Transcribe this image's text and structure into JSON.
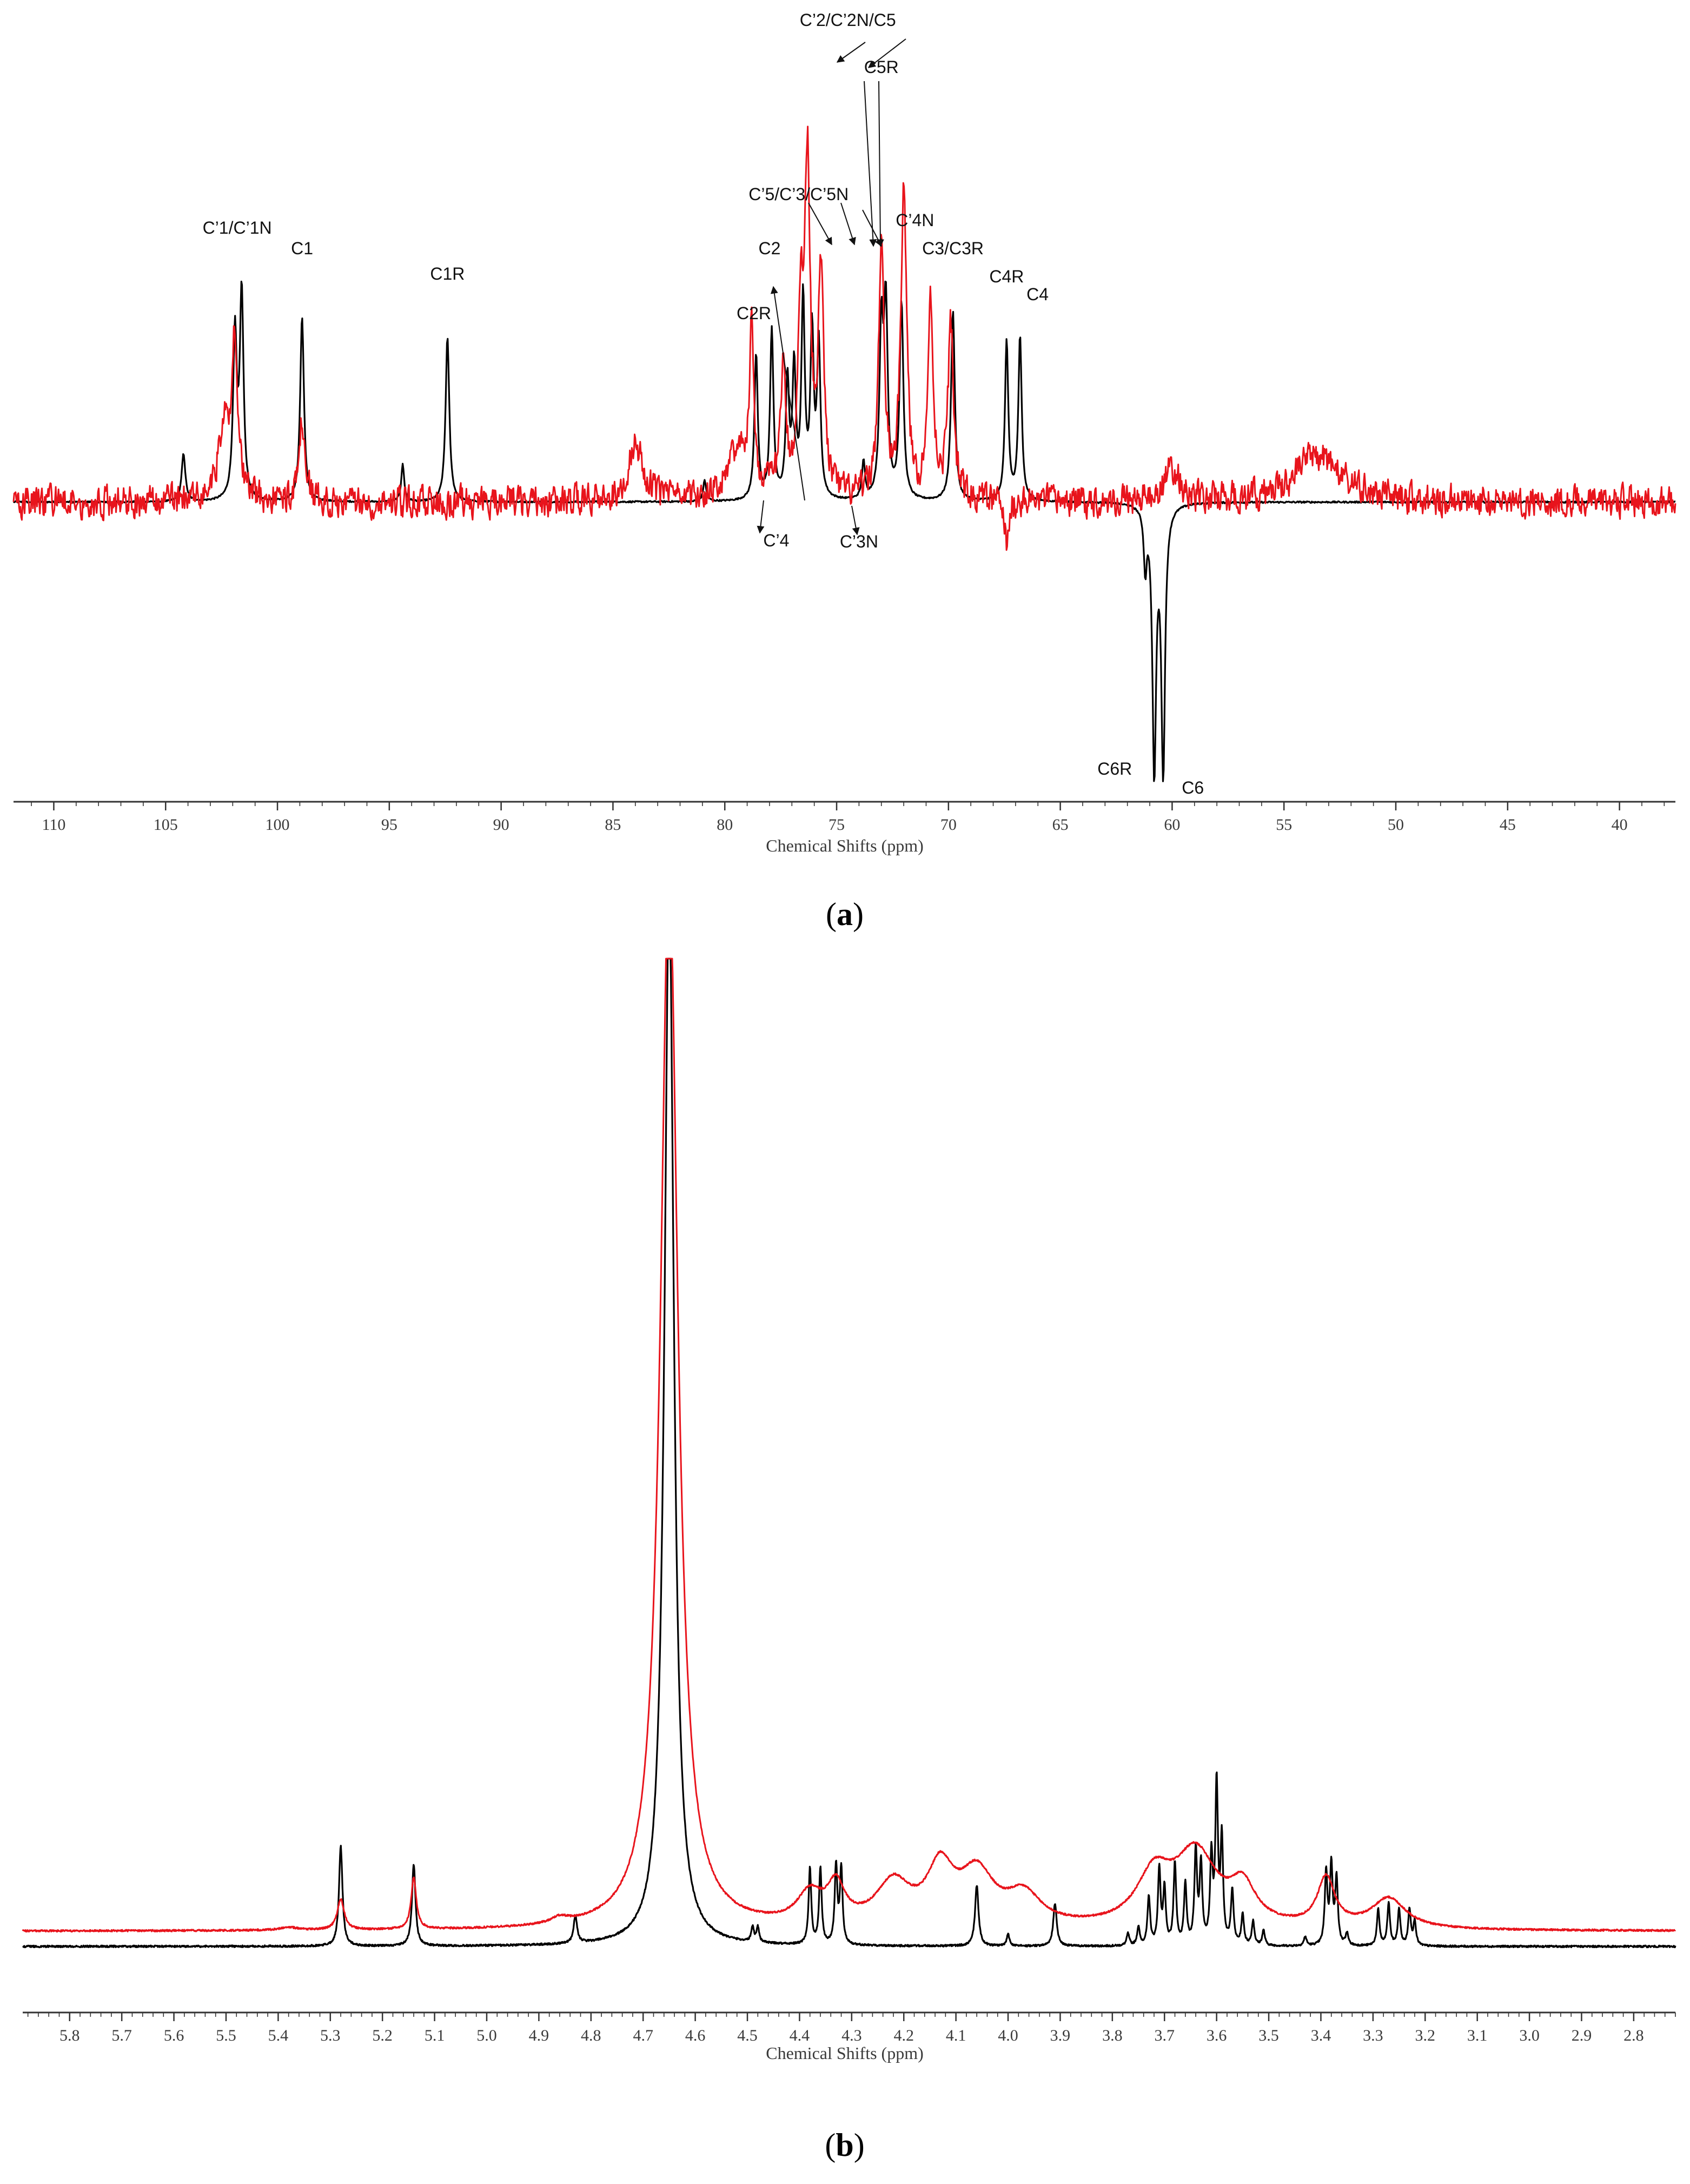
{
  "colors": {
    "black": "#000000",
    "red": "#e8141c",
    "axis": "#333333"
  },
  "chart_data": [
    {
      "type": "line",
      "panel": "a",
      "panel_label": "a",
      "xlabel": "Chemical Shifts (ppm)",
      "xlim": [
        111.8,
        37.5
      ],
      "x_reversed": true,
      "x_ticks": [
        110,
        105,
        100,
        95,
        90,
        85,
        80,
        75,
        70,
        65,
        60,
        55,
        50,
        45,
        40
      ],
      "series": [
        {
          "color": "black",
          "baseline": 0,
          "peaks": [
            {
              "x": 104.2,
              "h": 0.18,
              "w": 0.1
            },
            {
              "x": 101.9,
              "h": 0.62,
              "w": 0.1
            },
            {
              "x": 101.6,
              "h": 0.78,
              "w": 0.1
            },
            {
              "x": 98.9,
              "h": 0.7,
              "w": 0.1
            },
            {
              "x": 94.4,
              "h": 0.14,
              "w": 0.08
            },
            {
              "x": 92.4,
              "h": 0.62,
              "w": 0.1
            },
            {
              "x": 80.9,
              "h": 0.08,
              "w": 0.08
            },
            {
              "x": 78.6,
              "h": 0.55,
              "w": 0.09
            },
            {
              "x": 77.9,
              "h": 0.64,
              "w": 0.09
            },
            {
              "x": 77.2,
              "h": 0.44,
              "w": 0.09
            },
            {
              "x": 76.9,
              "h": 0.48,
              "w": 0.09
            },
            {
              "x": 76.5,
              "h": 0.75,
              "w": 0.09
            },
            {
              "x": 76.1,
              "h": 0.62,
              "w": 0.09
            },
            {
              "x": 75.8,
              "h": 0.58,
              "w": 0.09
            },
            {
              "x": 73.8,
              "h": 0.14,
              "w": 0.08
            },
            {
              "x": 73.0,
              "h": 0.62,
              "w": 0.1
            },
            {
              "x": 72.8,
              "h": 0.7,
              "w": 0.1
            },
            {
              "x": 72.1,
              "h": 0.74,
              "w": 0.1
            },
            {
              "x": 69.8,
              "h": 0.72,
              "w": 0.1
            },
            {
              "x": 67.4,
              "h": 0.6,
              "w": 0.09
            },
            {
              "x": 66.8,
              "h": 0.62,
              "w": 0.09
            },
            {
              "x": 61.2,
              "h": -0.22,
              "w": 0.08
            },
            {
              "x": 60.8,
              "h": -1.0,
              "w": 0.1
            },
            {
              "x": 60.4,
              "h": -1.0,
              "w": 0.1
            }
          ]
        },
        {
          "color": "red",
          "baseline": 0,
          "noise": 0.08,
          "peaks": [
            {
              "x": 102.4,
              "h": 0.28,
              "w": 0.3
            },
            {
              "x": 101.9,
              "h": 0.6,
              "w": 0.15
            },
            {
              "x": 98.9,
              "h": 0.3,
              "w": 0.15
            },
            {
              "x": 84.0,
              "h": 0.22,
              "w": 0.4
            },
            {
              "x": 79.5,
              "h": 0.18,
              "w": 0.6
            },
            {
              "x": 78.8,
              "h": 0.6,
              "w": 0.12
            },
            {
              "x": 77.4,
              "h": 0.45,
              "w": 0.15
            },
            {
              "x": 76.6,
              "h": 0.62,
              "w": 0.15
            },
            {
              "x": 76.3,
              "h": 1.2,
              "w": 0.15
            },
            {
              "x": 75.7,
              "h": 0.82,
              "w": 0.15
            },
            {
              "x": 73.0,
              "h": 0.95,
              "w": 0.15
            },
            {
              "x": 72.0,
              "h": 1.2,
              "w": 0.15
            },
            {
              "x": 70.8,
              "h": 0.72,
              "w": 0.15
            },
            {
              "x": 69.9,
              "h": 0.65,
              "w": 0.15
            },
            {
              "x": 67.4,
              "h": -0.18,
              "w": 0.1
            },
            {
              "x": 60.0,
              "h": 0.12,
              "w": 0.4
            },
            {
              "x": 53.5,
              "h": 0.18,
              "w": 1.2
            }
          ]
        }
      ],
      "annotations": [
        {
          "text": "C’1/C’1N",
          "x": 101.8
        },
        {
          "text": "C1",
          "x": 98.9
        },
        {
          "text": "C1R",
          "x": 92.4
        },
        {
          "text": "C2R",
          "x": 78.7
        },
        {
          "text": "C2",
          "x": 78.0
        },
        {
          "text": "C’5/C’3/C’5N",
          "x": 76.7
        },
        {
          "text": "C’2/C’2N/C5",
          "x": 74.5
        },
        {
          "text": "C5R",
          "x": 73.0
        },
        {
          "text": "C’4N",
          "x": 71.5
        },
        {
          "text": "C3/C3R",
          "x": 69.8
        },
        {
          "text": "C4R",
          "x": 67.4
        },
        {
          "text": "C4",
          "x": 66.5
        },
        {
          "text": "C’4",
          "x": 77.7
        },
        {
          "text": "C’3N",
          "x": 74.0
        },
        {
          "text": "C6R",
          "x": 61.6
        },
        {
          "text": "C6",
          "x": 59.8
        }
      ]
    },
    {
      "type": "line",
      "panel": "b",
      "panel_label": "b",
      "xlabel": "Chemical Shifts (ppm)",
      "xlim": [
        5.89,
        2.72
      ],
      "x_reversed": true,
      "x_ticks": [
        5.8,
        5.7,
        5.6,
        5.5,
        5.4,
        5.3,
        5.2,
        5.1,
        5.0,
        4.9,
        4.8,
        4.7,
        4.6,
        4.5,
        4.4,
        4.3,
        4.2,
        4.1,
        4.0,
        3.9,
        3.8,
        3.7,
        3.6,
        3.5,
        3.4,
        3.3,
        3.2,
        3.1,
        3.0,
        2.9,
        2.8
      ],
      "series": [
        {
          "color": "black",
          "baseline": 0,
          "peaks": [
            {
              "x": 5.28,
              "h": 0.33,
              "w": 0.004
            },
            {
              "x": 5.14,
              "h": 0.27,
              "w": 0.004
            },
            {
              "x": 4.83,
              "h": 0.09,
              "w": 0.004
            },
            {
              "x": 4.65,
              "h": 3.5,
              "w": 0.011
            },
            {
              "x": 4.49,
              "h": 0.05,
              "w": 0.003
            },
            {
              "x": 4.48,
              "h": 0.05,
              "w": 0.003
            },
            {
              "x": 4.38,
              "h": 0.25,
              "w": 0.003
            },
            {
              "x": 4.36,
              "h": 0.25,
              "w": 0.003
            },
            {
              "x": 4.33,
              "h": 0.26,
              "w": 0.003
            },
            {
              "x": 4.32,
              "h": 0.25,
              "w": 0.003
            },
            {
              "x": 4.06,
              "h": 0.2,
              "w": 0.004
            },
            {
              "x": 4.0,
              "h": 0.04,
              "w": 0.003
            },
            {
              "x": 3.91,
              "h": 0.14,
              "w": 0.004
            },
            {
              "x": 3.77,
              "h": 0.04,
              "w": 0.003
            },
            {
              "x": 3.75,
              "h": 0.06,
              "w": 0.003
            },
            {
              "x": 3.73,
              "h": 0.16,
              "w": 0.003
            },
            {
              "x": 3.71,
              "h": 0.25,
              "w": 0.003
            },
            {
              "x": 3.7,
              "h": 0.18,
              "w": 0.003
            },
            {
              "x": 3.68,
              "h": 0.27,
              "w": 0.003
            },
            {
              "x": 3.66,
              "h": 0.2,
              "w": 0.003
            },
            {
              "x": 3.64,
              "h": 0.31,
              "w": 0.003
            },
            {
              "x": 3.63,
              "h": 0.26,
              "w": 0.003
            },
            {
              "x": 3.61,
              "h": 0.28,
              "w": 0.003
            },
            {
              "x": 3.6,
              "h": 0.52,
              "w": 0.003
            },
            {
              "x": 3.59,
              "h": 0.34,
              "w": 0.003
            },
            {
              "x": 3.57,
              "h": 0.18,
              "w": 0.003
            },
            {
              "x": 3.55,
              "h": 0.1,
              "w": 0.003
            },
            {
              "x": 3.53,
              "h": 0.08,
              "w": 0.003
            },
            {
              "x": 3.51,
              "h": 0.05,
              "w": 0.003
            },
            {
              "x": 3.43,
              "h": 0.03,
              "w": 0.003
            },
            {
              "x": 3.39,
              "h": 0.24,
              "w": 0.003
            },
            {
              "x": 3.38,
              "h": 0.26,
              "w": 0.003
            },
            {
              "x": 3.37,
              "h": 0.22,
              "w": 0.003
            },
            {
              "x": 3.35,
              "h": 0.04,
              "w": 0.003
            },
            {
              "x": 3.29,
              "h": 0.12,
              "w": 0.003
            },
            {
              "x": 3.27,
              "h": 0.14,
              "w": 0.003
            },
            {
              "x": 3.25,
              "h": 0.12,
              "w": 0.003
            },
            {
              "x": 3.23,
              "h": 0.12,
              "w": 0.003
            },
            {
              "x": 3.22,
              "h": 0.08,
              "w": 0.003
            }
          ]
        },
        {
          "color": "red",
          "baseline": 0.05,
          "peaks": [
            {
              "x": 5.38,
              "h": 0.01,
              "w": 0.02
            },
            {
              "x": 5.28,
              "h": 0.1,
              "w": 0.008
            },
            {
              "x": 5.14,
              "h": 0.17,
              "w": 0.006
            },
            {
              "x": 4.86,
              "h": 0.02,
              "w": 0.02
            },
            {
              "x": 4.65,
              "h": 3.5,
              "w": 0.02
            },
            {
              "x": 4.38,
              "h": 0.1,
              "w": 0.03
            },
            {
              "x": 4.33,
              "h": 0.12,
              "w": 0.02
            },
            {
              "x": 4.22,
              "h": 0.14,
              "w": 0.04
            },
            {
              "x": 4.13,
              "h": 0.18,
              "w": 0.03
            },
            {
              "x": 4.06,
              "h": 0.17,
              "w": 0.04
            },
            {
              "x": 3.97,
              "h": 0.1,
              "w": 0.04
            },
            {
              "x": 3.72,
              "h": 0.16,
              "w": 0.04
            },
            {
              "x": 3.64,
              "h": 0.24,
              "w": 0.05
            },
            {
              "x": 3.55,
              "h": 0.12,
              "w": 0.03
            },
            {
              "x": 3.39,
              "h": 0.16,
              "w": 0.02
            },
            {
              "x": 3.27,
              "h": 0.1,
              "w": 0.04
            }
          ]
        }
      ]
    }
  ]
}
